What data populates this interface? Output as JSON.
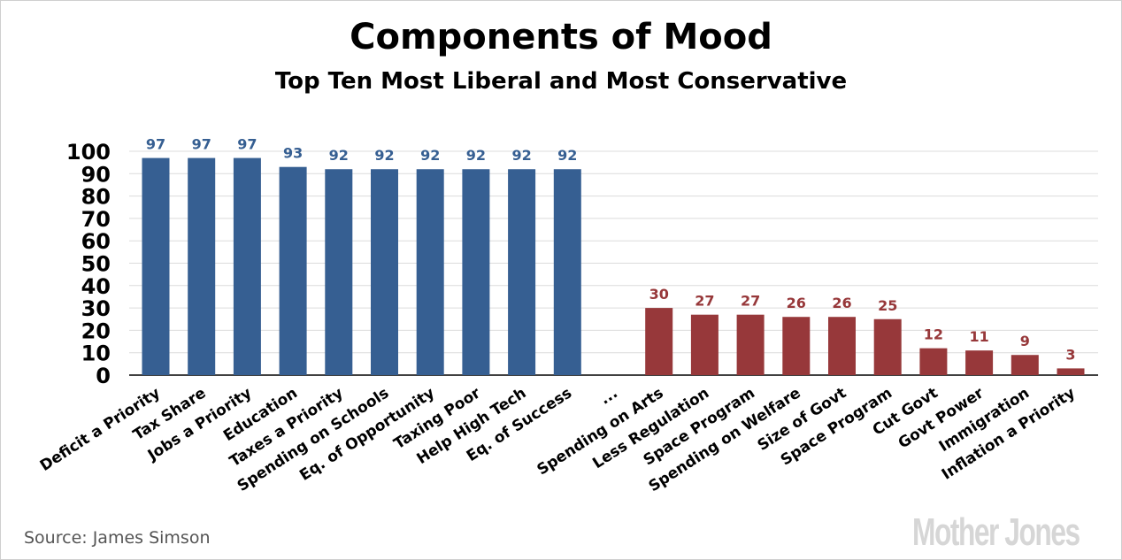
{
  "chart_data": {
    "type": "bar",
    "title": "Components of Mood",
    "subtitle": "Top Ten Most Liberal and Most Conservative",
    "ylim": [
      0,
      100
    ],
    "yticks": [
      0,
      10,
      20,
      30,
      40,
      50,
      60,
      70,
      80,
      90,
      100
    ],
    "grid": true,
    "categories": [
      "Deficit a Priority",
      "Tax Share",
      "Jobs a Priority",
      "Education",
      "Taxes a Priority",
      "Spending on Schools",
      "Eq. of Opportunity",
      "Taxing Poor",
      "Help High Tech",
      "Eq. of Success",
      "...",
      "Spending on Arts",
      "Less Regulation",
      "Space Program",
      "Spending on Welfare",
      "Size of Govt",
      "Space Program",
      "Cut Govt",
      "Govt Power",
      "Immigration",
      "Inflation a Priority"
    ],
    "values": [
      97,
      97,
      97,
      93,
      92,
      92,
      92,
      92,
      92,
      92,
      null,
      30,
      27,
      27,
      26,
      26,
      25,
      12,
      11,
      9,
      3
    ],
    "groups": [
      "liberal",
      "liberal",
      "liberal",
      "liberal",
      "liberal",
      "liberal",
      "liberal",
      "liberal",
      "liberal",
      "liberal",
      "gap",
      "conservative",
      "conservative",
      "conservative",
      "conservative",
      "conservative",
      "conservative",
      "conservative",
      "conservative",
      "conservative",
      "conservative"
    ],
    "colors": {
      "liberal": "#365f92",
      "conservative": "#97383a"
    }
  },
  "source": "Source: James Simson",
  "logo": "Mother Jones"
}
